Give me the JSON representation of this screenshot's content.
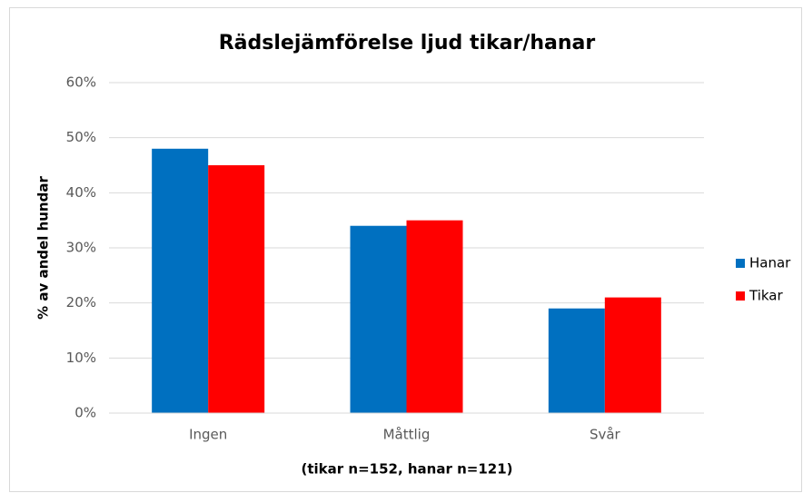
{
  "chart_data": {
    "type": "bar",
    "title": "Rädslejämförelse ljud tikar/hanar",
    "x_label": "(tikar n=152, hanar n=121)",
    "y_label": "% av andel hundar",
    "categories": [
      "Ingen",
      "Måttlig",
      "Svår"
    ],
    "series": [
      {
        "name": "Hanar",
        "color": "#0070c0",
        "values": [
          48,
          34,
          19
        ]
      },
      {
        "name": "Tikar",
        "color": "#ff0000",
        "values": [
          45,
          35,
          21
        ]
      }
    ],
    "ylim": [
      0,
      60
    ],
    "yticks": [
      {
        "value": 0,
        "label": "0%"
      },
      {
        "value": 10,
        "label": "10%"
      },
      {
        "value": 20,
        "label": "20%"
      },
      {
        "value": 30,
        "label": "30%"
      },
      {
        "value": 40,
        "label": "40%"
      },
      {
        "value": 50,
        "label": "50%"
      },
      {
        "value": 60,
        "label": "60%"
      }
    ],
    "grid": true,
    "legend": "right"
  }
}
